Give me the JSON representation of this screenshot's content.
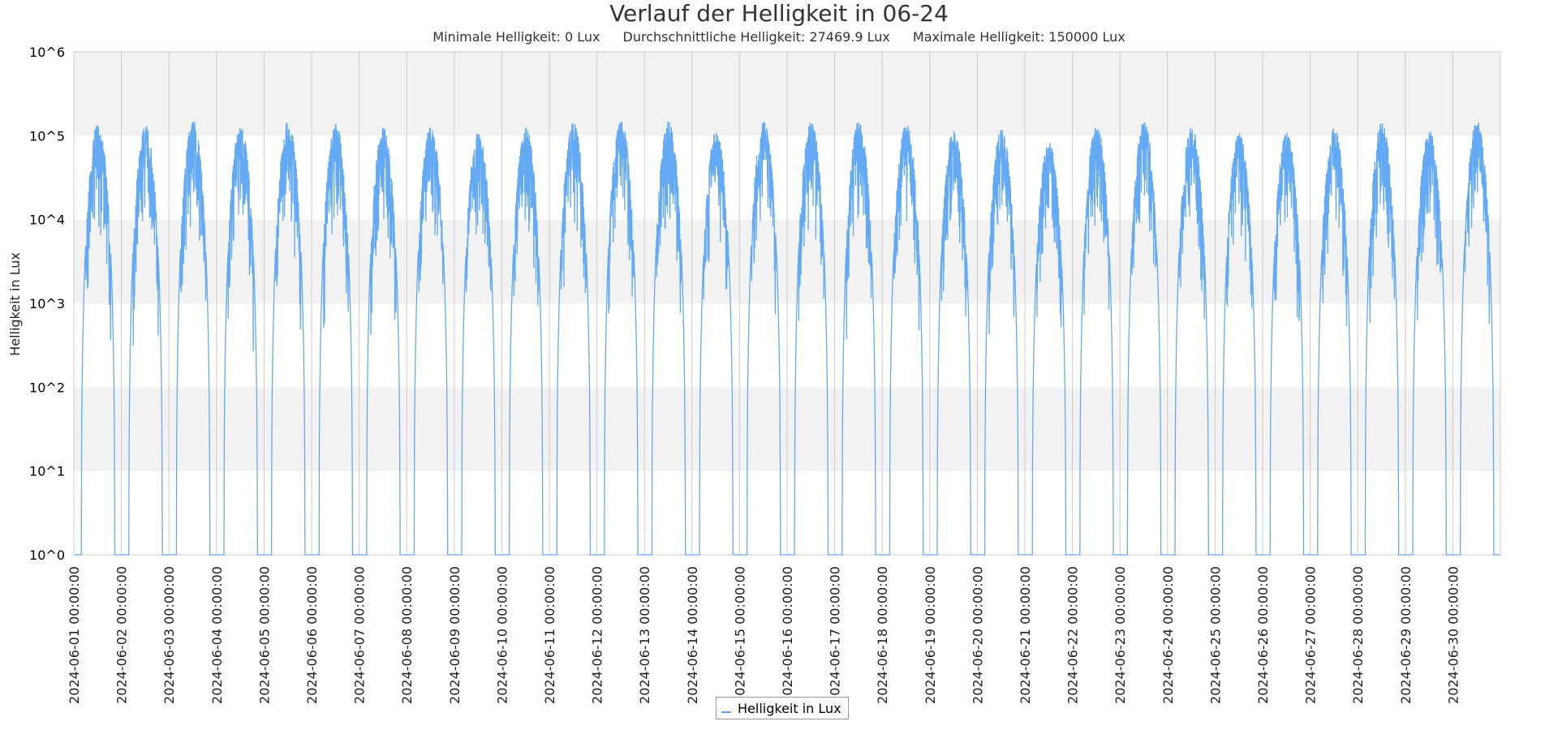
{
  "title": "Verlauf der Helligkeit in 06-24",
  "stats": {
    "min": "Minimale Helligkeit: 0 Lux",
    "avg": "Durchschnittliche Helligkeit: 27469.9 Lux",
    "max": "Maximale Helligkeit: 150000 Lux"
  },
  "colors": {
    "series": "#63a9f4",
    "band": "#f2f2f2",
    "grid": "#cccccc"
  },
  "chart_data": {
    "type": "line",
    "title": "Verlauf der Helligkeit in 06-24",
    "ylabel": "Helligkeit in Lux",
    "yscale": "log",
    "ylim": [
      1,
      1000000
    ],
    "y_ticks": [
      "10^0",
      "10^1",
      "10^2",
      "10^3",
      "10^4",
      "10^5",
      "10^6"
    ],
    "x_ticks": [
      "2024-06-01 00:00:00",
      "2024-06-02 00:00:00",
      "2024-06-03 00:00:00",
      "2024-06-04 00:00:00",
      "2024-06-05 00:00:00",
      "2024-06-06 00:00:00",
      "2024-06-07 00:00:00",
      "2024-06-08 00:00:00",
      "2024-06-09 00:00:00",
      "2024-06-10 00:00:00",
      "2024-06-11 00:00:00",
      "2024-06-12 00:00:00",
      "2024-06-13 00:00:00",
      "2024-06-14 00:00:00",
      "2024-06-15 00:00:00",
      "2024-06-16 00:00:00",
      "2024-06-17 00:00:00",
      "2024-06-18 00:00:00",
      "2024-06-19 00:00:00",
      "2024-06-20 00:00:00",
      "2024-06-21 00:00:00",
      "2024-06-22 00:00:00",
      "2024-06-23 00:00:00",
      "2024-06-24 00:00:00",
      "2024-06-25 00:00:00",
      "2024-06-26 00:00:00",
      "2024-06-27 00:00:00",
      "2024-06-28 00:00:00",
      "2024-06-29 00:00:00",
      "2024-06-30 00:00:00"
    ],
    "grid": true,
    "legend": "bottom-center",
    "series": [
      {
        "name": "Helligkeit in Lux",
        "daily_peak_lux": [
          140000,
          130000,
          150000,
          130000,
          150000,
          140000,
          125000,
          130000,
          115000,
          125000,
          145000,
          150000,
          150000,
          115000,
          150000,
          150000,
          150000,
          140000,
          120000,
          130000,
          85000,
          140000,
          150000,
          130000,
          110000,
          110000,
          125000,
          145000,
          115000,
          150000
        ],
        "sunrise_hour": 3.8,
        "sunset_hour": 20.6
      }
    ]
  }
}
